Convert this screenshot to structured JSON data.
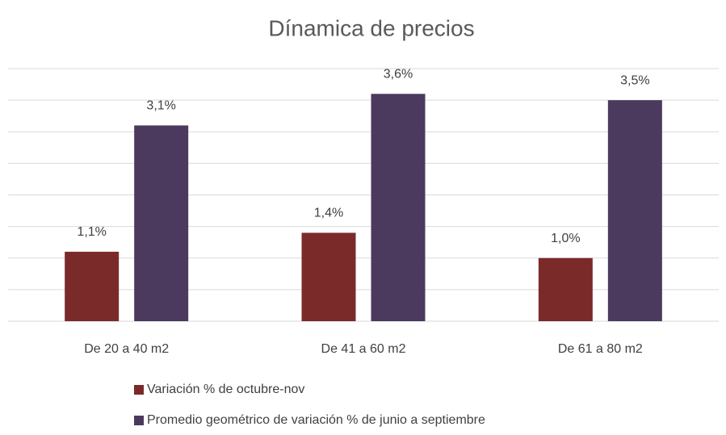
{
  "chart_data": {
    "type": "bar",
    "title": "Dínamica de precios",
    "categories": [
      "De 20 a 40 m2",
      "De 41 a 60 m2",
      "De 61 a 80 m2"
    ],
    "series": [
      {
        "name": "Variación % de octubre-nov",
        "color": "#7b2a2a",
        "values": [
          1.1,
          1.4,
          1.0
        ],
        "value_labels": [
          "1,1%",
          "1,4%",
          "1,0%"
        ]
      },
      {
        "name": "Promedio geométrico de variación % de junio a septiembre",
        "color": "#4b3a5e",
        "values": [
          3.1,
          3.6,
          3.5
        ],
        "value_labels": [
          "3,1%",
          "3,6%",
          "3,5%"
        ]
      }
    ],
    "ylim": [
      0,
      4
    ],
    "yticks": [
      0,
      0.5,
      1,
      1.5,
      2,
      2.5,
      3,
      3.5,
      4
    ],
    "grid": true,
    "legend": "bottom"
  }
}
